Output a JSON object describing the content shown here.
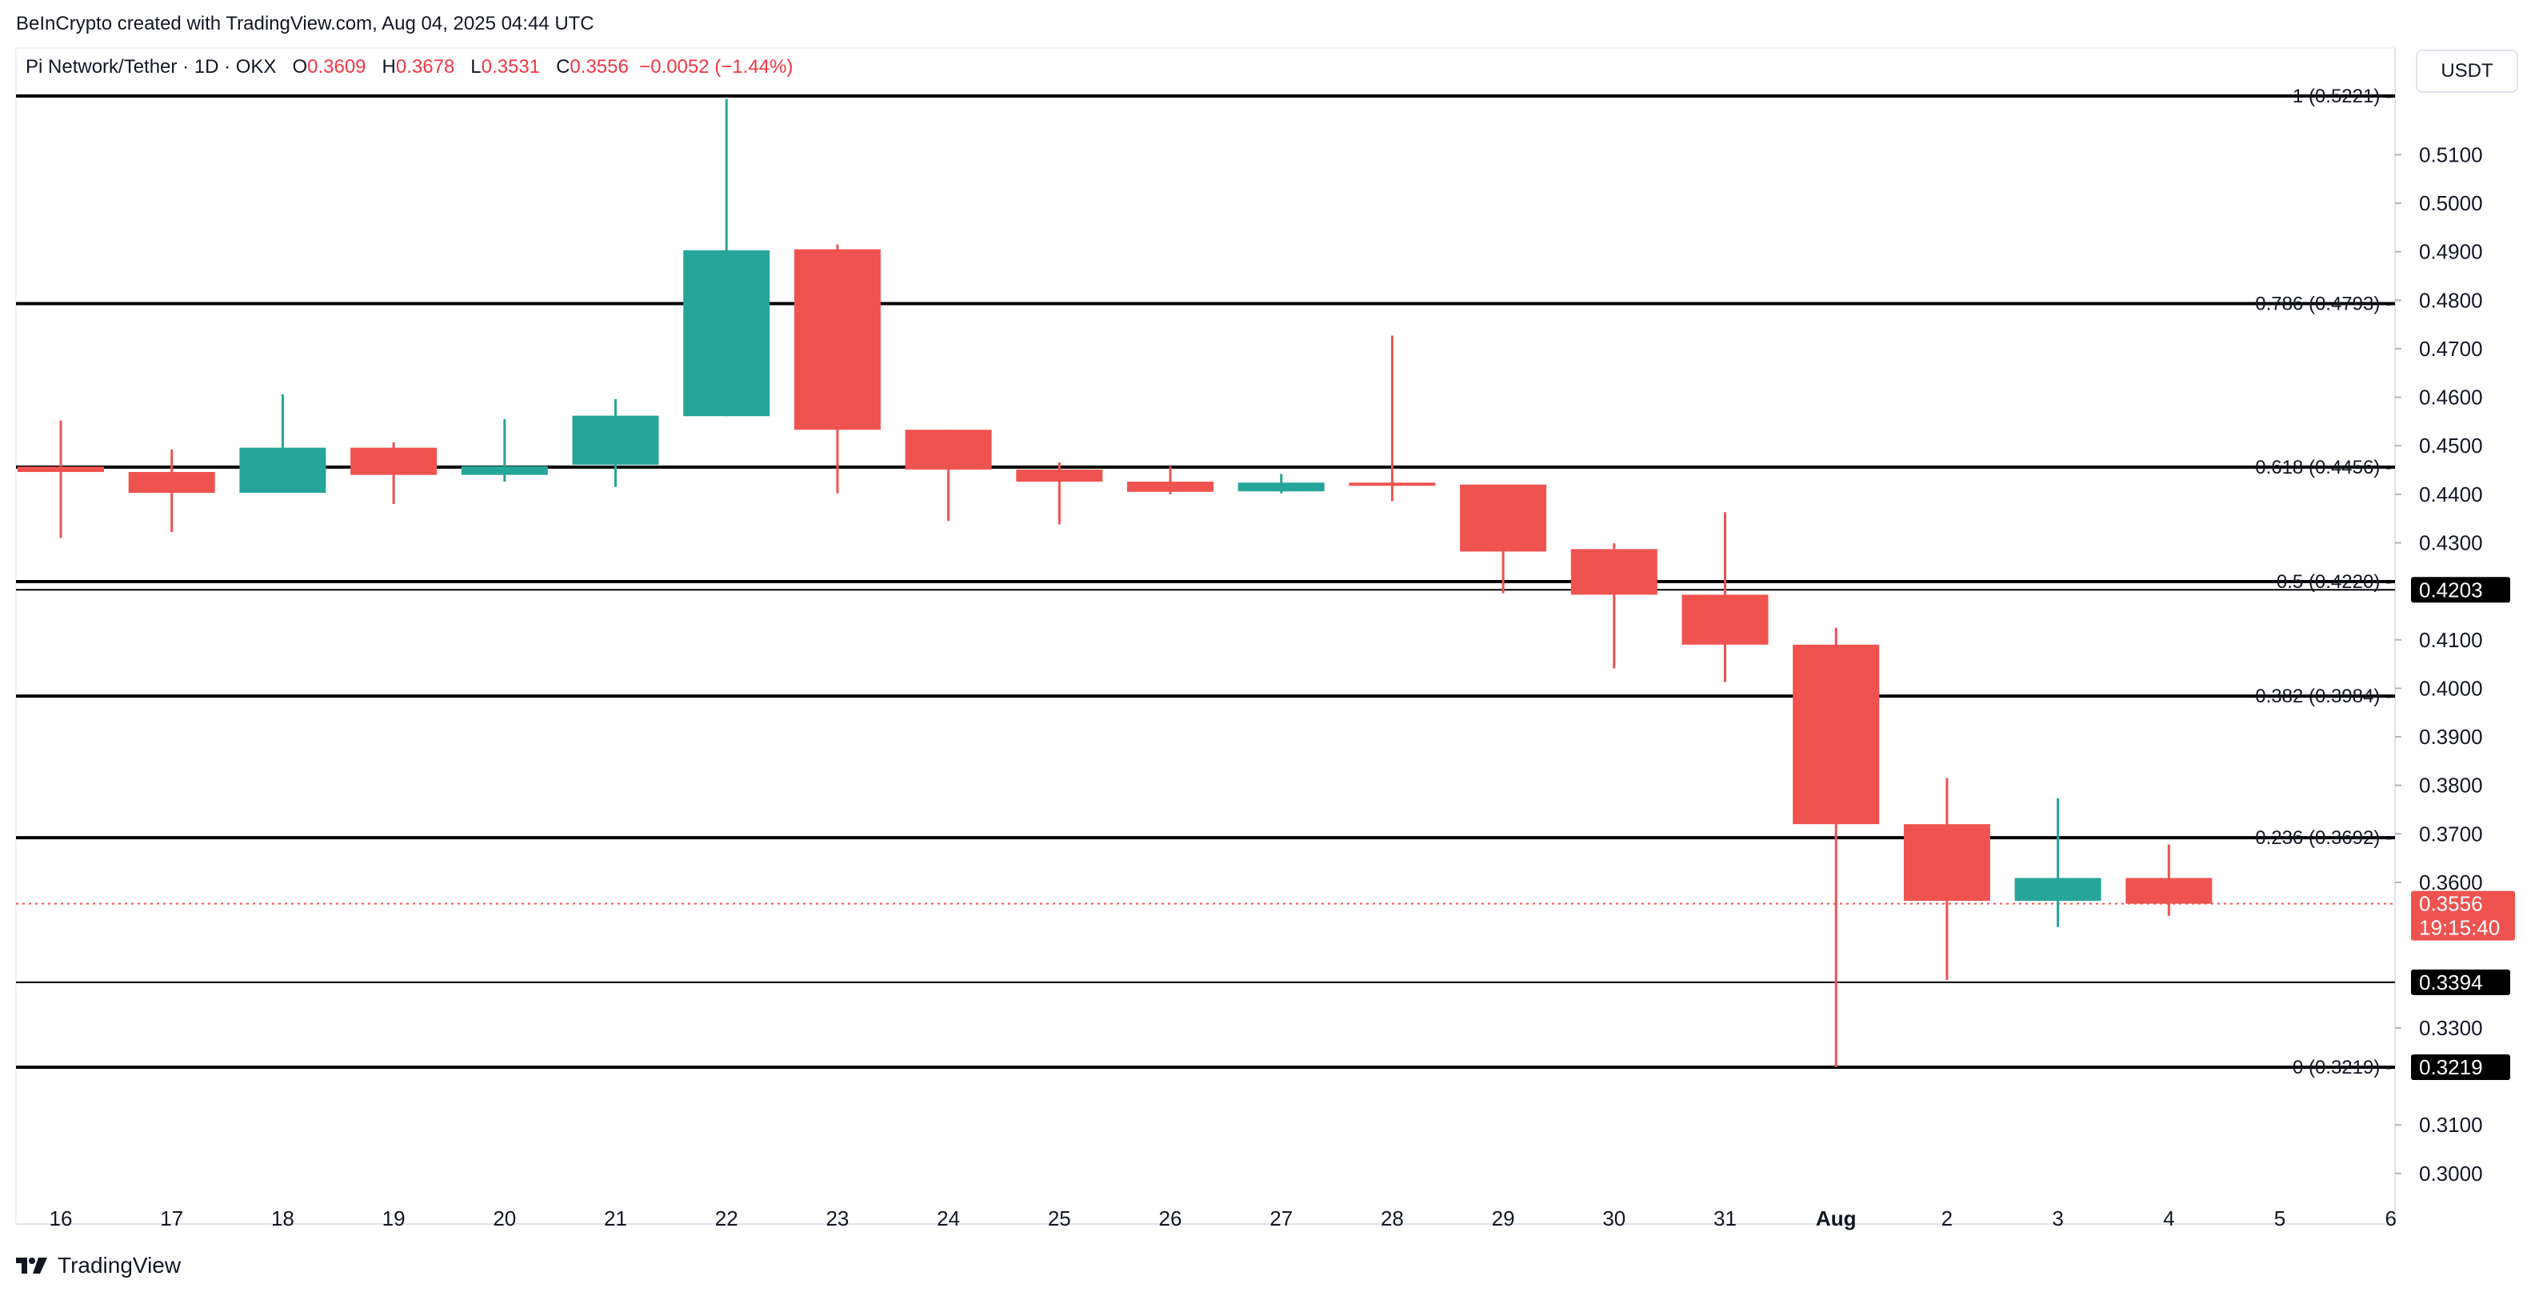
{
  "credit": "BeInCrypto created with TradingView.com, Aug 04, 2025 04:44 UTC",
  "symbol": {
    "name": "Pi Network/Tether · 1D · OKX",
    "o_label": "O",
    "o_value": "0.3609",
    "h_label": "H",
    "h_value": "0.3678",
    "l_label": "L",
    "l_value": "0.3531",
    "c_label": "C",
    "c_value": "0.3556",
    "change": "−0.0052 (−1.44%)"
  },
  "currency": "USDT",
  "brand": "TradingView",
  "colors": {
    "up": "#26a69a",
    "down": "#ef5350",
    "text": "#131722",
    "grid_border": "#e0e3eb"
  },
  "chart_data": {
    "type": "candlestick",
    "timeframe": "1D",
    "ylim": [
      0.294,
      0.527
    ],
    "y_ticks": [
      "0.5100",
      "0.5000",
      "0.4900",
      "0.4800",
      "0.4700",
      "0.4600",
      "0.4500",
      "0.4400",
      "0.4300",
      "0.4100",
      "0.4000",
      "0.3900",
      "0.3800",
      "0.3700",
      "0.3600",
      "0.3300",
      "0.3100",
      "0.3000"
    ],
    "x_ticks": [
      "16",
      "17",
      "18",
      "19",
      "20",
      "21",
      "22",
      "23",
      "24",
      "25",
      "26",
      "27",
      "28",
      "29",
      "30",
      "31",
      "Aug",
      "2",
      "3",
      "4",
      "5",
      "6"
    ],
    "candles": [
      {
        "date": "16",
        "open": 0.4457,
        "high": 0.4552,
        "low": 0.431,
        "close": 0.4446
      },
      {
        "date": "17",
        "open": 0.4446,
        "high": 0.4492,
        "low": 0.4322,
        "close": 0.4403
      },
      {
        "date": "18",
        "open": 0.4403,
        "high": 0.4606,
        "low": 0.4403,
        "close": 0.4496
      },
      {
        "date": "19",
        "open": 0.4496,
        "high": 0.4507,
        "low": 0.438,
        "close": 0.444
      },
      {
        "date": "20",
        "open": 0.444,
        "high": 0.4555,
        "low": 0.4426,
        "close": 0.4458
      },
      {
        "date": "21",
        "open": 0.4461,
        "high": 0.4596,
        "low": 0.4415,
        "close": 0.4562
      },
      {
        "date": "22",
        "open": 0.4561,
        "high": 0.5215,
        "low": 0.4561,
        "close": 0.4903
      },
      {
        "date": "23",
        "open": 0.4905,
        "high": 0.4915,
        "low": 0.4402,
        "close": 0.4533
      },
      {
        "date": "24",
        "open": 0.4533,
        "high": 0.4533,
        "low": 0.4345,
        "close": 0.4451
      },
      {
        "date": "25",
        "open": 0.4451,
        "high": 0.4466,
        "low": 0.4338,
        "close": 0.4426
      },
      {
        "date": "26",
        "open": 0.4426,
        "high": 0.4458,
        "low": 0.44,
        "close": 0.4405
      },
      {
        "date": "27",
        "open": 0.4406,
        "high": 0.4442,
        "low": 0.4402,
        "close": 0.4424
      },
      {
        "date": "28",
        "open": 0.4424,
        "high": 0.4727,
        "low": 0.4386,
        "close": 0.4419
      },
      {
        "date": "29",
        "open": 0.442,
        "high": 0.442,
        "low": 0.4196,
        "close": 0.4282
      },
      {
        "date": "30",
        "open": 0.4287,
        "high": 0.4299,
        "low": 0.4041,
        "close": 0.4193
      },
      {
        "date": "31",
        "open": 0.4193,
        "high": 0.4363,
        "low": 0.4013,
        "close": 0.409
      },
      {
        "date": "Aug",
        "open": 0.409,
        "high": 0.4125,
        "low": 0.3219,
        "close": 0.372
      },
      {
        "date": "2",
        "open": 0.372,
        "high": 0.3815,
        "low": 0.3399,
        "close": 0.3562
      },
      {
        "date": "3",
        "open": 0.3562,
        "high": 0.3773,
        "low": 0.3508,
        "close": 0.3609
      },
      {
        "date": "4",
        "open": 0.3609,
        "high": 0.3678,
        "low": 0.3531,
        "close": 0.3556
      }
    ],
    "fib_levels": [
      {
        "label": "1 (0.5221)",
        "price": 0.5221
      },
      {
        "label": "0.786 (0.4793)",
        "price": 0.4793
      },
      {
        "label": "0.618 (0.4456)",
        "price": 0.4456
      },
      {
        "label": "0.5 (0.4220)",
        "price": 0.422
      },
      {
        "label": "0.382 (0.3984)",
        "price": 0.3984
      },
      {
        "label": "0.236 (0.3692)",
        "price": 0.3692
      },
      {
        "label": "0 (0.3219)",
        "price": 0.3219
      }
    ],
    "horizontal_lines": [
      {
        "price": 0.4203,
        "label": "0.4203"
      },
      {
        "price": 0.3394,
        "label": "0.3394"
      }
    ],
    "price_tags": [
      {
        "label": "0.4203",
        "price": 0.4203
      },
      {
        "label": "0.3394",
        "price": 0.3394
      },
      {
        "label": "0.3219",
        "price": 0.3219
      }
    ],
    "current_price": {
      "price": 0.3556,
      "label": "0.3556",
      "countdown": "19:15:40"
    }
  }
}
